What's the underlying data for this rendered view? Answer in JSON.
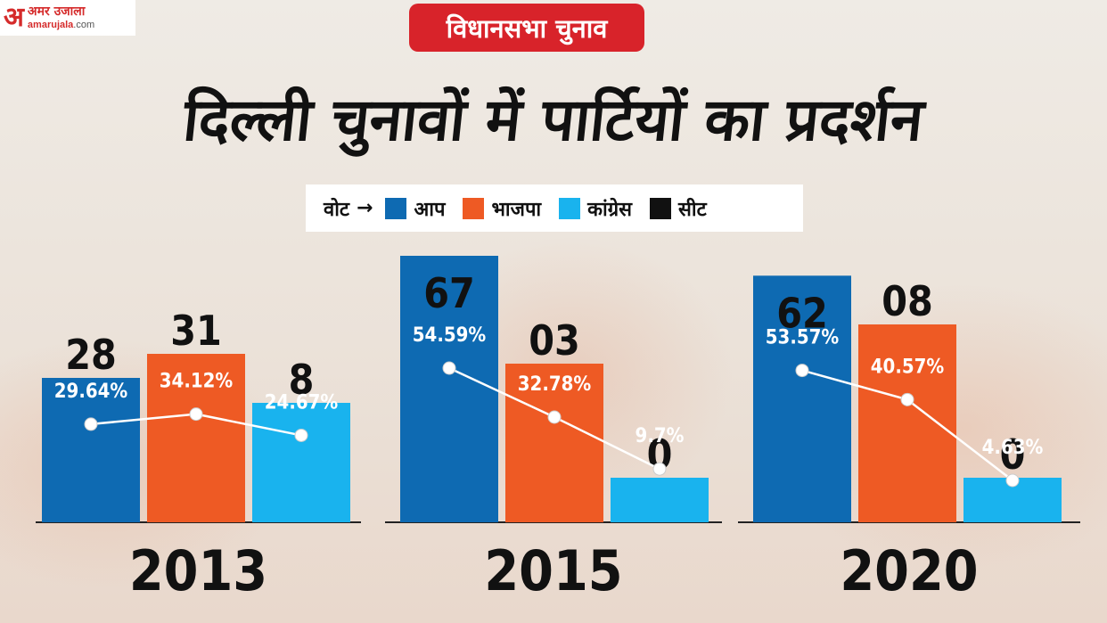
{
  "logo": {
    "hindi": "अमर उजाला",
    "site": "amarujala",
    "tld": ".com",
    "mark": "अ"
  },
  "banner": "विधानसभा चुनाव",
  "title": "दिल्ली चुनावों में पार्टियों का प्रदर्शन",
  "legend": {
    "prefix": "वोट",
    "items": [
      {
        "label": "आप",
        "color": "#0e6ab2"
      },
      {
        "label": "भाजपा",
        "color": "#ee5a24"
      },
      {
        "label": "कांग्रेस",
        "color": "#19b3ee"
      },
      {
        "label": "सीट",
        "color": "#111111"
      }
    ]
  },
  "chart_data": {
    "type": "bar",
    "categories": [
      "2013",
      "2015",
      "2020"
    ],
    "series": [
      {
        "name": "आप",
        "color": "#0e6ab2",
        "seats": [
          "28",
          "67",
          "62"
        ],
        "vote_labels": [
          "29.64%",
          "54.59%",
          "53.57%"
        ],
        "votes": [
          29.64,
          54.59,
          53.57
        ]
      },
      {
        "name": "भाजपा",
        "color": "#ee5a24",
        "seats": [
          "31",
          "03",
          "08"
        ],
        "vote_labels": [
          "34.12%",
          "32.78%",
          "40.57%"
        ],
        "votes": [
          34.12,
          32.78,
          40.57
        ]
      },
      {
        "name": "कांग्रेस",
        "color": "#19b3ee",
        "seats": [
          "8",
          "0",
          "0"
        ],
        "vote_labels": [
          "24.67%",
          "9.7%",
          "4.63%"
        ],
        "votes": [
          24.67,
          9.7,
          4.63
        ]
      }
    ],
    "seat_values": [
      [
        28,
        67,
        62
      ],
      [
        31,
        3,
        8
      ],
      [
        8,
        0,
        0
      ]
    ],
    "grid": false
  }
}
